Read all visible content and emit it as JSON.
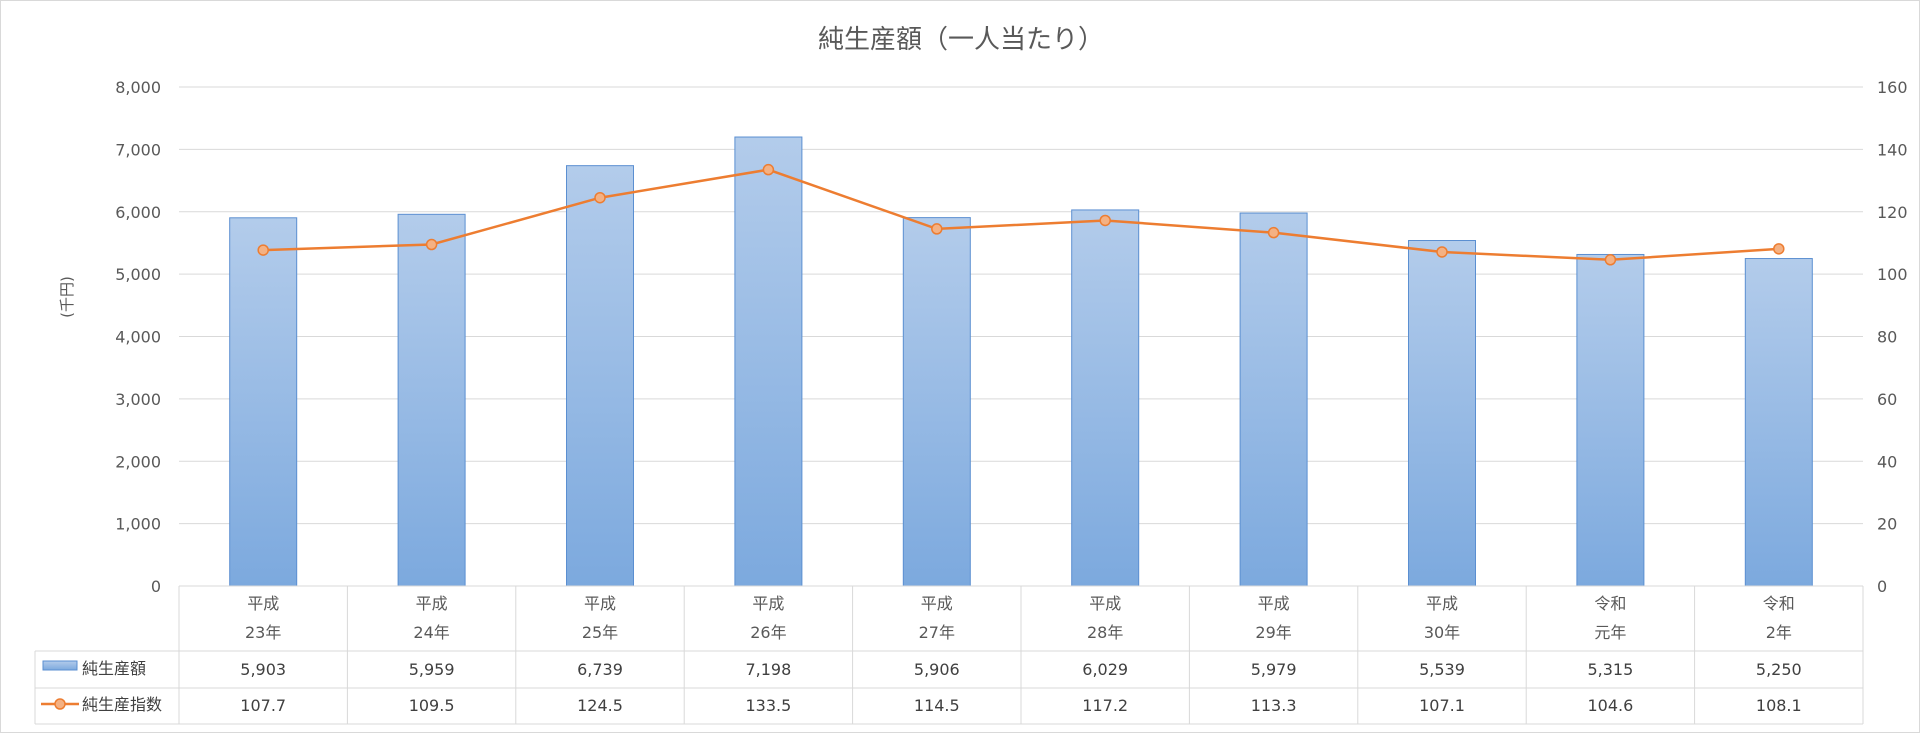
{
  "chart_data": {
    "type": "bar+line",
    "title": "純生産額（一人当たり）",
    "ylabel_left": "(千円)",
    "ylim_left": [
      0,
      8000
    ],
    "yticks_left": [
      "0",
      "1,000",
      "2,000",
      "3,000",
      "4,000",
      "5,000",
      "6,000",
      "7,000",
      "8,000"
    ],
    "ylim_right": [
      0,
      160
    ],
    "yticks_right": [
      "0",
      "20",
      "40",
      "60",
      "80",
      "100",
      "120",
      "140",
      "160"
    ],
    "grid": true,
    "categories": [
      [
        "平成",
        "23年"
      ],
      [
        "平成",
        "24年"
      ],
      [
        "平成",
        "25年"
      ],
      [
        "平成",
        "26年"
      ],
      [
        "平成",
        "27年"
      ],
      [
        "平成",
        "28年"
      ],
      [
        "平成",
        "29年"
      ],
      [
        "平成",
        "30年"
      ],
      [
        "令和",
        "元年"
      ],
      [
        "令和",
        "2年"
      ]
    ],
    "series": [
      {
        "name": "純生産額",
        "kind": "bar",
        "axis": "left",
        "values": [
          5903,
          5959,
          6739,
          7198,
          5906,
          6029,
          5979,
          5539,
          5315,
          5250
        ],
        "labels": [
          "5,903",
          "5,959",
          "6,739",
          "7,198",
          "5,906",
          "6,029",
          "5,979",
          "5,539",
          "5,315",
          "5,250"
        ],
        "color": "#7aa7dc"
      },
      {
        "name": "純生産指数",
        "kind": "line",
        "axis": "right",
        "values": [
          107.7,
          109.5,
          124.5,
          133.5,
          114.5,
          117.2,
          113.3,
          107.1,
          104.6,
          108.1
        ],
        "labels": [
          "107.7",
          "109.5",
          "124.5",
          "133.5",
          "114.5",
          "117.2",
          "113.3",
          "107.1",
          "104.6",
          "108.1"
        ],
        "color": "#ed7d31"
      }
    ],
    "legend": "data-table"
  }
}
